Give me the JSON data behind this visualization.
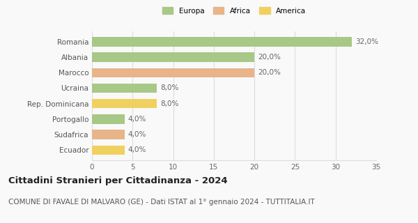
{
  "categories": [
    "Ecuador",
    "Sudafrica",
    "Portogallo",
    "Rep. Dominicana",
    "Ucraina",
    "Marocco",
    "Albania",
    "Romania"
  ],
  "values": [
    4.0,
    4.0,
    4.0,
    8.0,
    8.0,
    20.0,
    20.0,
    32.0
  ],
  "colors": [
    "#f0d060",
    "#e8b48a",
    "#a8c887",
    "#f0d060",
    "#a8c887",
    "#e8b48a",
    "#a8c887",
    "#a8c887"
  ],
  "labels": [
    "4,0%",
    "4,0%",
    "4,0%",
    "8,0%",
    "8,0%",
    "20,0%",
    "20,0%",
    "32,0%"
  ],
  "legend": [
    {
      "label": "Europa",
      "color": "#a8c887"
    },
    {
      "label": "Africa",
      "color": "#e8b48a"
    },
    {
      "label": "America",
      "color": "#f0d060"
    }
  ],
  "xlim": [
    0,
    35
  ],
  "xticks": [
    0,
    5,
    10,
    15,
    20,
    25,
    30,
    35
  ],
  "title": "Cittadini Stranieri per Cittadinanza - 2024",
  "subtitle": "COMUNE DI FAVALE DI MALVARO (GE) - Dati ISTAT al 1° gennaio 2024 - TUTTITALIA.IT",
  "title_fontsize": 9.5,
  "subtitle_fontsize": 7.5,
  "label_fontsize": 7.5,
  "tick_fontsize": 7.5,
  "background_color": "#f9f9f9",
  "grid_color": "#dddddd"
}
